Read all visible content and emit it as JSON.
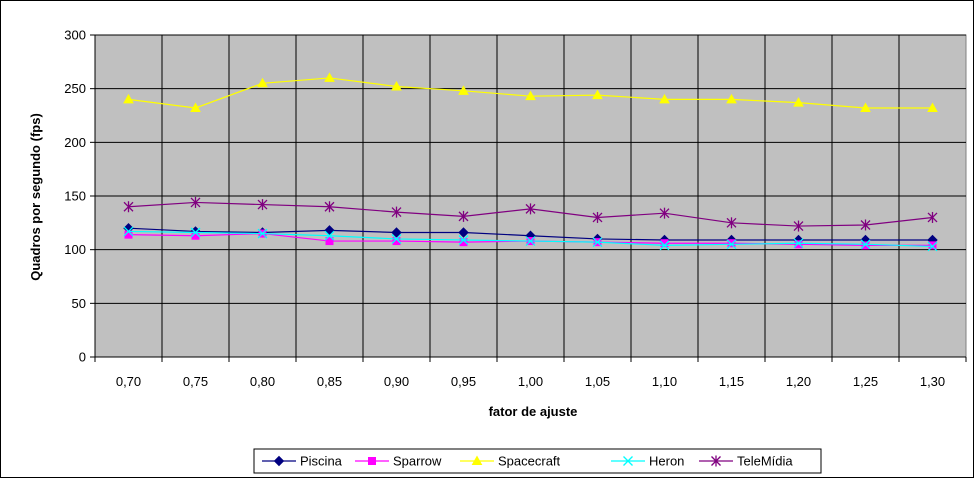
{
  "chart_data": {
    "type": "line",
    "title": "",
    "xlabel": "fator de ajuste",
    "ylabel": "Quadros por segundo (fps)",
    "categories": [
      "0,70",
      "0,75",
      "0,80",
      "0,85",
      "0,90",
      "0,95",
      "1,00",
      "1,05",
      "1,10",
      "1,15",
      "1,20",
      "1,25",
      "1,30"
    ],
    "ylim": [
      0,
      300
    ],
    "yticks": [
      "0",
      "50",
      "100",
      "150",
      "200",
      "250",
      "300"
    ],
    "grid": "on",
    "legend_position": "bottom",
    "plot_background": "#c0c0c0",
    "series": [
      {
        "name": "Piscina",
        "color": "#000080",
        "marker": "diamond",
        "values": [
          120,
          117,
          116,
          118,
          116,
          116,
          113,
          110,
          109,
          109,
          109,
          109,
          109
        ]
      },
      {
        "name": "Sparrow",
        "color": "#ff00ff",
        "marker": "square",
        "values": [
          114,
          113,
          115,
          108,
          108,
          107,
          108,
          107,
          106,
          106,
          105,
          104,
          104
        ]
      },
      {
        "name": "Spacecraft",
        "color": "#ffff00",
        "marker": "triangle",
        "values": [
          240,
          232,
          255,
          260,
          252,
          248,
          243,
          244,
          240,
          240,
          237,
          232,
          232
        ]
      },
      {
        "name": "Heron",
        "color": "#00ffff",
        "marker": "x",
        "values": [
          117,
          116,
          115,
          113,
          110,
          109,
          108,
          107,
          104,
          105,
          106,
          105,
          103
        ]
      },
      {
        "name": "TeleMídia",
        "color": "#800080",
        "marker": "star",
        "values": [
          140,
          144,
          142,
          140,
          135,
          131,
          138,
          130,
          134,
          125,
          122,
          123,
          130
        ]
      }
    ]
  }
}
